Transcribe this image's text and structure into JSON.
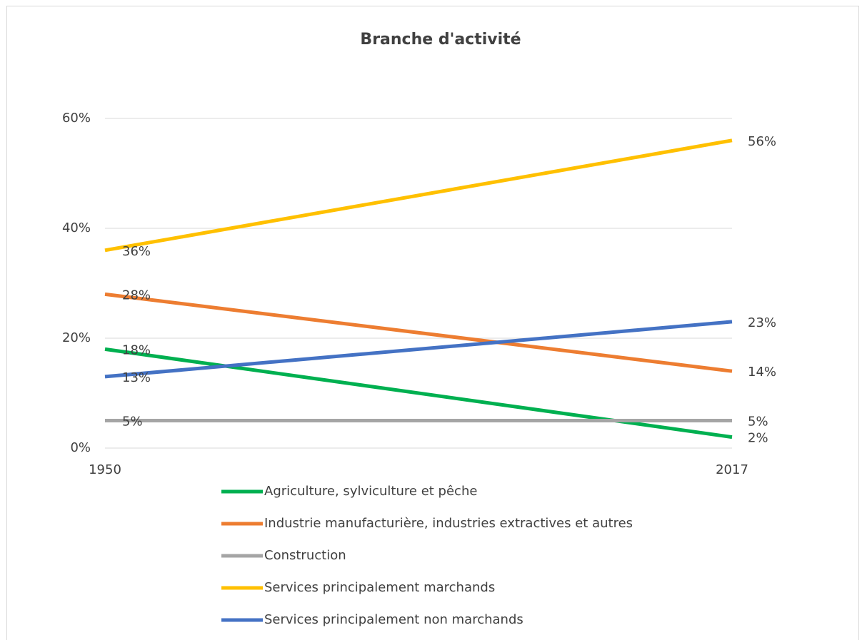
{
  "chart_data": {
    "type": "line",
    "title": "Branche d'activité",
    "categories": [
      "1950",
      "2017"
    ],
    "series": [
      {
        "name": "Agriculture, sylviculture et pêche",
        "color": "#00b050",
        "values": [
          18,
          2
        ],
        "value_labels": [
          "18%",
          "2%"
        ]
      },
      {
        "name": "Industrie manufacturière, industries extractives et autres",
        "color": "#ed7d31",
        "values": [
          28,
          14
        ],
        "value_labels": [
          "28%",
          "14%"
        ]
      },
      {
        "name": "Construction",
        "color": "#a5a5a5",
        "values": [
          5,
          5
        ],
        "value_labels": [
          "5%",
          "5%"
        ]
      },
      {
        "name": "Services principalement marchands",
        "color": "#ffc000",
        "values": [
          36,
          56
        ],
        "value_labels": [
          "36%",
          "56%"
        ]
      },
      {
        "name": "Services principalement non marchands",
        "color": "#4472c4",
        "values": [
          13,
          23
        ],
        "value_labels": [
          "13%",
          "23%"
        ]
      }
    ],
    "ylim": [
      0,
      60
    ],
    "yticks": [
      {
        "value": 0,
        "label": "0%"
      },
      {
        "value": 20,
        "label": "20%"
      },
      {
        "value": 40,
        "label": "40%"
      },
      {
        "value": 60,
        "label": "60%"
      }
    ],
    "grid": true,
    "legend": "bottom"
  }
}
